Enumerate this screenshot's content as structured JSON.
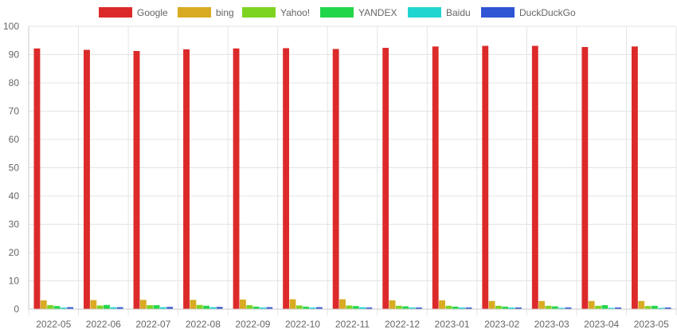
{
  "chart_data": {
    "type": "bar",
    "title": "",
    "xlabel": "",
    "ylabel": "",
    "ylim": [
      0,
      100
    ],
    "yticks": [
      0,
      10,
      20,
      30,
      40,
      50,
      60,
      70,
      80,
      90,
      100
    ],
    "grid": true,
    "legend_position": "top",
    "categories": [
      "2022-05",
      "2022-06",
      "2022-07",
      "2022-08",
      "2022-09",
      "2022-10",
      "2022-11",
      "2022-12",
      "2023-01",
      "2023-02",
      "2023-03",
      "2023-04",
      "2023-05"
    ],
    "series": [
      {
        "name": "Google",
        "color": "#dc2a2a",
        "values": [
          92.1,
          91.6,
          91.2,
          91.8,
          92.1,
          92.2,
          91.9,
          92.3,
          92.8,
          93.0,
          93.0,
          92.6,
          92.8
        ]
      },
      {
        "name": "bing",
        "color": "#d9ab22",
        "values": [
          3.0,
          3.1,
          3.2,
          3.2,
          3.3,
          3.4,
          3.4,
          3.0,
          3.0,
          2.8,
          2.8,
          2.8,
          2.8
        ]
      },
      {
        "name": "Yahoo!",
        "color": "#7ed321",
        "values": [
          1.3,
          1.2,
          1.3,
          1.4,
          1.3,
          1.2,
          1.2,
          1.1,
          1.1,
          1.1,
          1.1,
          1.1,
          1.0
        ]
      },
      {
        "name": "YANDEX",
        "color": "#22d64a",
        "values": [
          1.0,
          1.4,
          1.3,
          1.1,
          0.8,
          0.8,
          1.0,
          0.9,
          0.8,
          0.8,
          0.9,
          1.3,
          1.1
        ]
      },
      {
        "name": "Baidu",
        "color": "#22d6d0",
        "values": [
          0.5,
          0.6,
          0.6,
          0.6,
          0.5,
          0.5,
          0.6,
          0.5,
          0.5,
          0.5,
          0.4,
          0.4,
          0.4
        ]
      },
      {
        "name": "DuckDuckGo",
        "color": "#2f55d4",
        "values": [
          0.6,
          0.6,
          0.7,
          0.7,
          0.6,
          0.6,
          0.5,
          0.5,
          0.5,
          0.5,
          0.5,
          0.5,
          0.5
        ]
      }
    ]
  }
}
